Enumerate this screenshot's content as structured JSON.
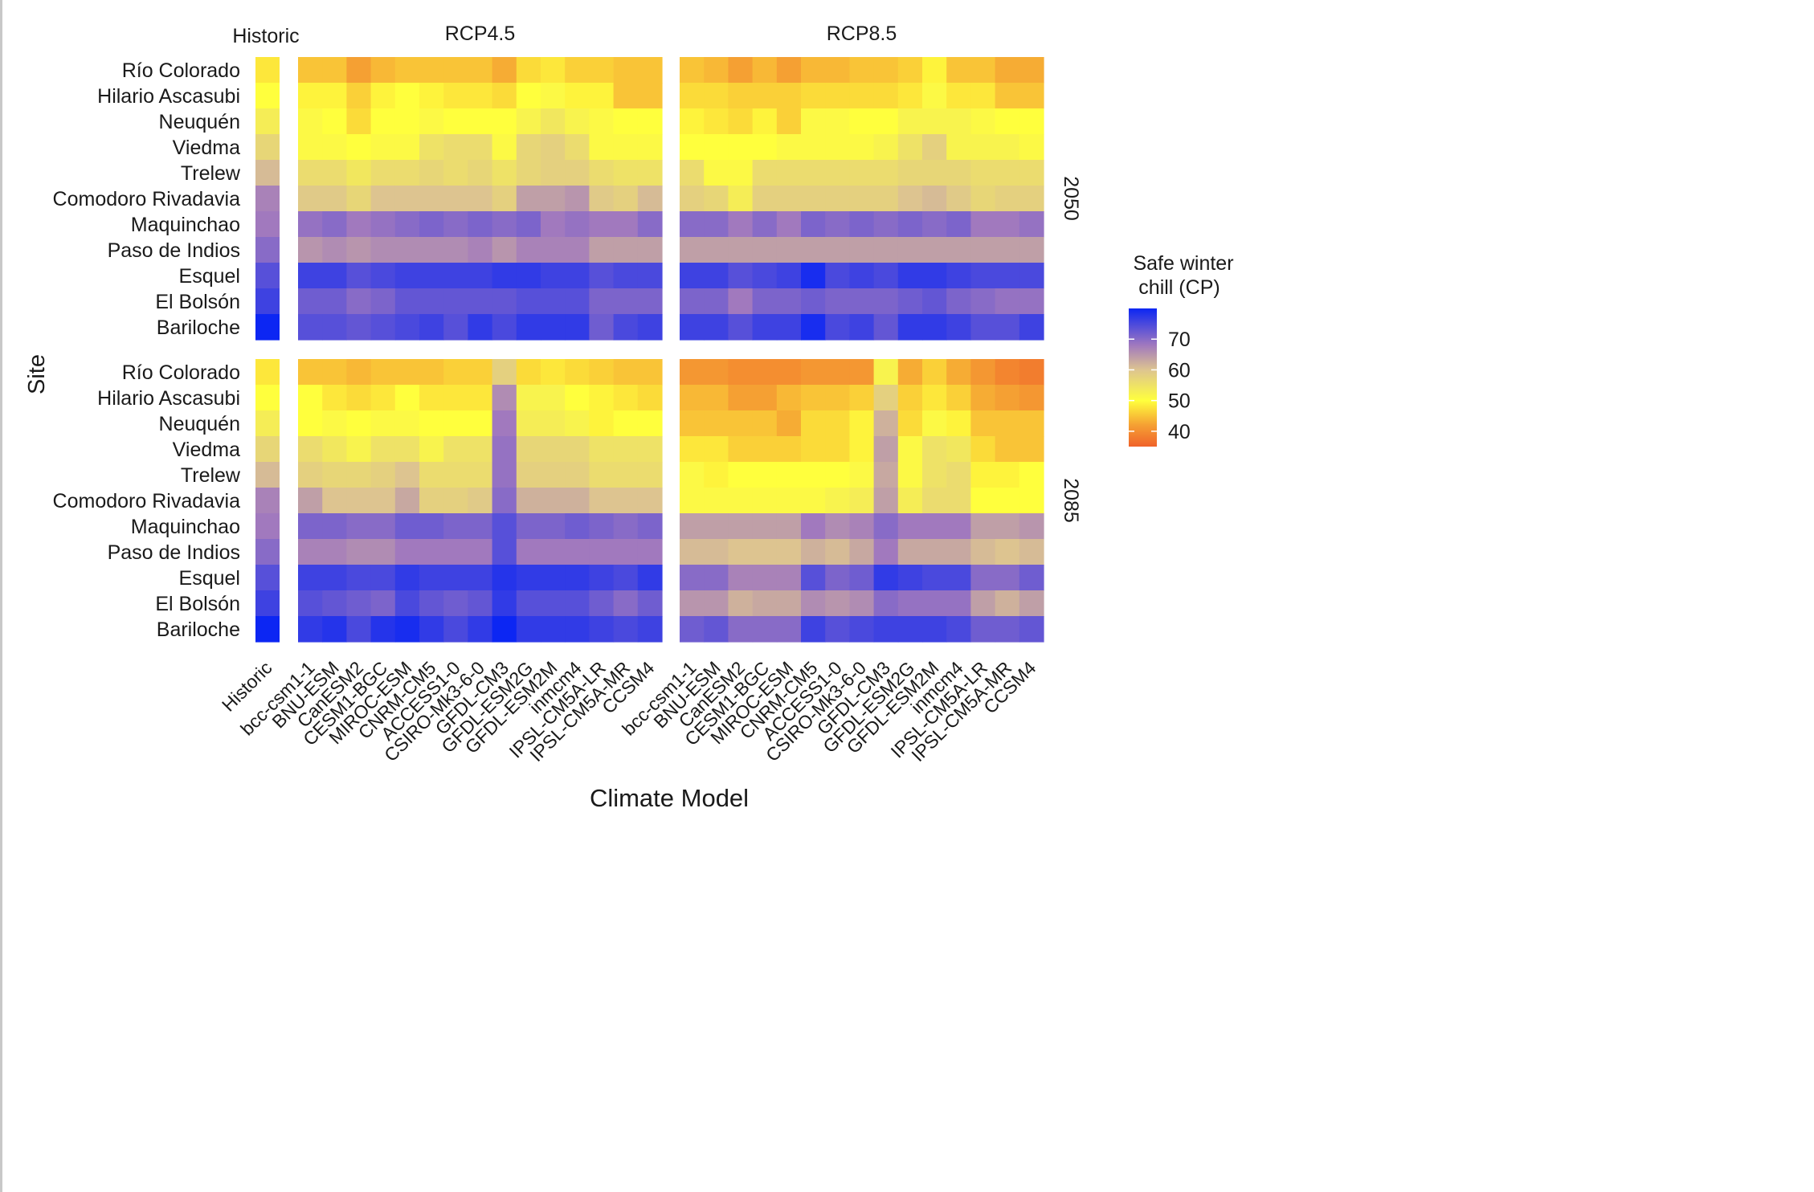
{
  "chart_data": {
    "type": "heatmap",
    "xlabel": "Climate Model",
    "ylabel": "Site",
    "facet_columns": [
      "Historic",
      "RCP4.5",
      "RCP8.5"
    ],
    "facet_rows": [
      "2050",
      "2085"
    ],
    "sites": [
      "Río Colorado",
      "Hilario Ascasubi",
      "Neuquén",
      "Viedma",
      "Trelew",
      "Comodoro Rivadavia",
      "Maquinchao",
      "Paso de Indios",
      "Esquel",
      "El Bolsón",
      "Bariloche"
    ],
    "historic_label": "Historic",
    "models": [
      "bcc-csm1-1",
      "BNU-ESM",
      "CanESM2",
      "CESM1-BGC",
      "MIROC-ESM",
      "CNRM-CM5",
      "ACCESS1-0",
      "CSIRO-Mk3-6-0",
      "GFDL-CM3",
      "GFDL-ESM2G",
      "GFDL-ESM2M",
      "inmcm4",
      "IPSL-CM5A-LR",
      "IPSL-CM5A-MR",
      "CCSM4"
    ],
    "legend": {
      "title": [
        "Safe winter",
        "chill (CP)"
      ],
      "ticks": [
        70,
        60,
        50,
        40
      ],
      "min": 35,
      "max": 80,
      "position": "right"
    },
    "color_stops": [
      {
        "v": 35,
        "color": "#F0622A"
      },
      {
        "v": 42,
        "color": "#F5A033"
      },
      {
        "v": 50,
        "color": "#FFFF3D"
      },
      {
        "v": 60,
        "color": "#DDC490"
      },
      {
        "v": 68,
        "color": "#A179BE"
      },
      {
        "v": 80,
        "color": "#0C26F3"
      }
    ],
    "historic": [
      48,
      50,
      53,
      57,
      61,
      67,
      68,
      70,
      74,
      76,
      80
    ],
    "values": {
      "2050": {
        "RCP4.5": [
          [
            45,
            45,
            42,
            44,
            45,
            45,
            45,
            45,
            43,
            47,
            48,
            46,
            46,
            45,
            45
          ],
          [
            49,
            49,
            46,
            49,
            50,
            49,
            48,
            48,
            47,
            50,
            51,
            49,
            49,
            45,
            45
          ],
          [
            51,
            50,
            47,
            50,
            50,
            51,
            50,
            50,
            50,
            52,
            54,
            52,
            51,
            50,
            50
          ],
          [
            51,
            51,
            50,
            51,
            51,
            55,
            56,
            56,
            51,
            57,
            58,
            56,
            51,
            51,
            51
          ],
          [
            56,
            56,
            54,
            56,
            56,
            57,
            56,
            57,
            55,
            57,
            58,
            58,
            56,
            55,
            55
          ],
          [
            59,
            59,
            57,
            60,
            60,
            60,
            60,
            60,
            58,
            64,
            64,
            65,
            59,
            58,
            61
          ],
          [
            69,
            70,
            68,
            69,
            70,
            71,
            70,
            71,
            70,
            71,
            68,
            69,
            68,
            68,
            70
          ],
          [
            65,
            66,
            65,
            66,
            66,
            66,
            66,
            67,
            65,
            67,
            67,
            67,
            64,
            64,
            64
          ],
          [
            76,
            76,
            74,
            75,
            76,
            76,
            76,
            76,
            77,
            77,
            76,
            76,
            74,
            75,
            75
          ],
          [
            72,
            72,
            70,
            71,
            73,
            73,
            73,
            73,
            73,
            74,
            74,
            74,
            71,
            71,
            71
          ],
          [
            74,
            74,
            73,
            74,
            75,
            76,
            74,
            77,
            75,
            77,
            77,
            77,
            72,
            75,
            76
          ]
        ],
        "RCP8.5": [
          [
            45,
            44,
            42,
            44,
            42,
            44,
            44,
            45,
            45,
            46,
            49,
            45,
            45,
            43,
            43
          ],
          [
            47,
            47,
            46,
            46,
            46,
            47,
            47,
            47,
            47,
            48,
            51,
            48,
            48,
            45,
            45
          ],
          [
            49,
            48,
            47,
            49,
            46,
            51,
            51,
            50,
            50,
            52,
            52,
            52,
            51,
            50,
            50
          ],
          [
            50,
            50,
            50,
            50,
            51,
            51,
            51,
            51,
            52,
            55,
            58,
            52,
            52,
            52,
            51
          ],
          [
            56,
            51,
            51,
            56,
            56,
            56,
            56,
            56,
            56,
            57,
            57,
            57,
            56,
            56,
            56
          ],
          [
            58,
            57,
            53,
            58,
            58,
            58,
            58,
            58,
            58,
            60,
            61,
            59,
            57,
            58,
            58
          ],
          [
            70,
            70,
            68,
            70,
            68,
            71,
            70,
            71,
            70,
            71,
            70,
            71,
            68,
            68,
            69
          ],
          [
            64,
            64,
            64,
            64,
            64,
            64,
            64,
            64,
            64,
            64,
            64,
            64,
            64,
            64,
            64
          ],
          [
            76,
            76,
            74,
            75,
            76,
            79,
            75,
            76,
            75,
            77,
            77,
            76,
            75,
            75,
            75
          ],
          [
            71,
            71,
            68,
            71,
            71,
            72,
            71,
            71,
            71,
            72,
            73,
            71,
            70,
            69,
            69
          ],
          [
            76,
            76,
            74,
            76,
            76,
            79,
            75,
            76,
            73,
            77,
            77,
            76,
            74,
            74,
            76
          ]
        ]
      },
      "2085": {
        "RCP4.5": [
          [
            45,
            45,
            44,
            45,
            45,
            45,
            46,
            46,
            58,
            47,
            48,
            47,
            46,
            45,
            45
          ],
          [
            50,
            48,
            47,
            48,
            50,
            48,
            48,
            48,
            66,
            52,
            52,
            50,
            49,
            48,
            47
          ],
          [
            50,
            51,
            50,
            51,
            51,
            50,
            50,
            50,
            68,
            53,
            53,
            52,
            49,
            50,
            50
          ],
          [
            56,
            54,
            52,
            55,
            55,
            52,
            55,
            55,
            69,
            57,
            57,
            57,
            55,
            55,
            55
          ],
          [
            58,
            57,
            57,
            58,
            60,
            56,
            56,
            56,
            69,
            58,
            58,
            58,
            56,
            56,
            56
          ],
          [
            64,
            60,
            60,
            60,
            63,
            58,
            58,
            59,
            70,
            62,
            62,
            62,
            60,
            60,
            60
          ],
          [
            71,
            71,
            70,
            70,
            72,
            72,
            71,
            71,
            74,
            71,
            71,
            72,
            71,
            70,
            71
          ],
          [
            67,
            67,
            66,
            66,
            68,
            68,
            68,
            68,
            74,
            68,
            68,
            68,
            68,
            68,
            68
          ],
          [
            76,
            76,
            75,
            75,
            77,
            76,
            76,
            76,
            78,
            77,
            77,
            77,
            76,
            75,
            77
          ],
          [
            74,
            73,
            72,
            71,
            75,
            73,
            72,
            73,
            77,
            74,
            74,
            74,
            72,
            70,
            72
          ],
          [
            77,
            78,
            75,
            78,
            79,
            77,
            75,
            77,
            80,
            77,
            77,
            77,
            76,
            75,
            76
          ]
        ],
        "RCP8.5": [
          [
            41,
            41,
            40,
            40,
            40,
            41,
            41,
            41,
            52,
            43,
            46,
            43,
            41,
            39,
            38
          ],
          [
            44,
            44,
            42,
            42,
            44,
            45,
            45,
            46,
            58,
            46,
            48,
            46,
            43,
            42,
            41
          ],
          [
            45,
            45,
            45,
            45,
            43,
            47,
            47,
            49,
            62,
            47,
            51,
            49,
            45,
            45,
            45
          ],
          [
            48,
            48,
            46,
            46,
            46,
            47,
            47,
            49,
            64,
            51,
            55,
            54,
            47,
            45,
            45
          ],
          [
            51,
            49,
            50,
            50,
            50,
            50,
            50,
            51,
            63,
            51,
            55,
            56,
            49,
            49,
            50
          ],
          [
            51,
            51,
            51,
            51,
            51,
            51,
            52,
            53,
            64,
            53,
            56,
            56,
            50,
            50,
            50
          ],
          [
            64,
            64,
            64,
            64,
            64,
            68,
            66,
            67,
            70,
            68,
            68,
            68,
            64,
            64,
            65
          ],
          [
            61,
            61,
            60,
            60,
            60,
            62,
            61,
            63,
            68,
            63,
            63,
            63,
            61,
            60,
            61
          ],
          [
            70,
            70,
            67,
            67,
            67,
            74,
            71,
            72,
            77,
            76,
            75,
            75,
            70,
            70,
            72
          ],
          [
            65,
            65,
            62,
            63,
            63,
            66,
            65,
            66,
            70,
            69,
            69,
            69,
            64,
            62,
            64
          ],
          [
            72,
            73,
            70,
            70,
            70,
            76,
            74,
            75,
            76,
            76,
            76,
            75,
            72,
            72,
            73
          ]
        ]
      }
    }
  }
}
